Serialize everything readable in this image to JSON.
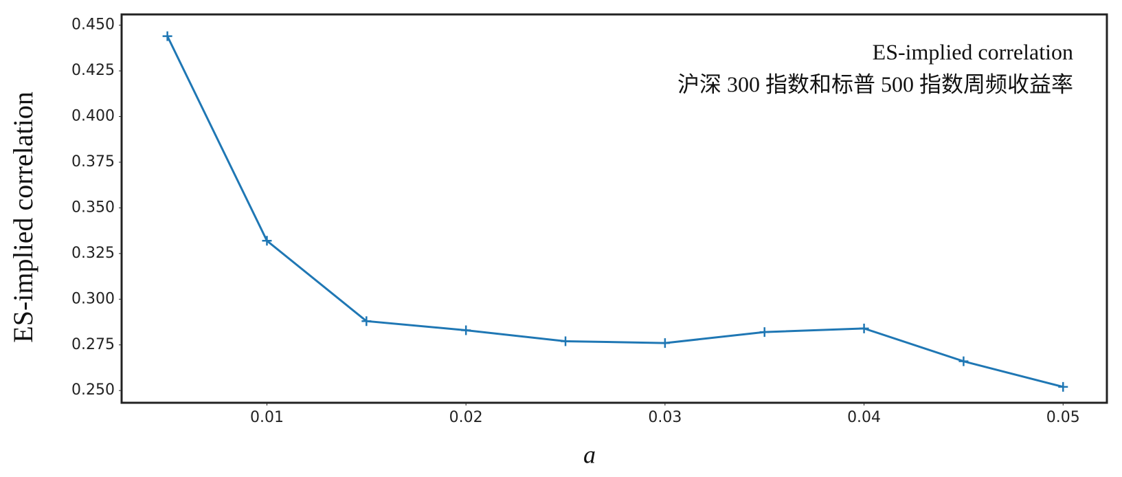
{
  "chart_data": {
    "type": "line",
    "annotation": [
      "ES-implied correlation",
      "沪深 300 指数和标普 500 指数周频收益率"
    ],
    "x_label": "a",
    "y_label": "ES-implied correlation",
    "x": [
      0.005,
      0.01,
      0.015,
      0.02,
      0.025,
      0.03,
      0.035,
      0.04,
      0.045,
      0.05
    ],
    "series": [
      {
        "name": "ES-implied correlation",
        "color": "#1f77b4",
        "values": [
          0.444,
          0.332,
          0.288,
          0.283,
          0.277,
          0.276,
          0.282,
          0.284,
          0.266,
          0.252
        ]
      }
    ],
    "xlim": [
      0.0027,
      0.0522
    ],
    "ylim": [
      0.2433,
      0.4559
    ],
    "xticks": [
      0.01,
      0.02,
      0.03,
      0.04,
      0.05
    ],
    "yticks": [
      {
        "value": 0.25,
        "label": "0.250"
      },
      {
        "value": 0.275,
        "label": "0.275"
      },
      {
        "value": 0.3,
        "label": "0.300"
      },
      {
        "value": 0.325,
        "label": "0.325"
      },
      {
        "value": 0.35,
        "label": "0.350"
      },
      {
        "value": 0.375,
        "label": "0.375"
      },
      {
        "value": 0.4,
        "label": "0.400"
      },
      {
        "value": 0.425,
        "label": "0.425"
      },
      {
        "value": 0.45,
        "label": "0.450"
      }
    ],
    "marker": "+",
    "grid": false
  }
}
